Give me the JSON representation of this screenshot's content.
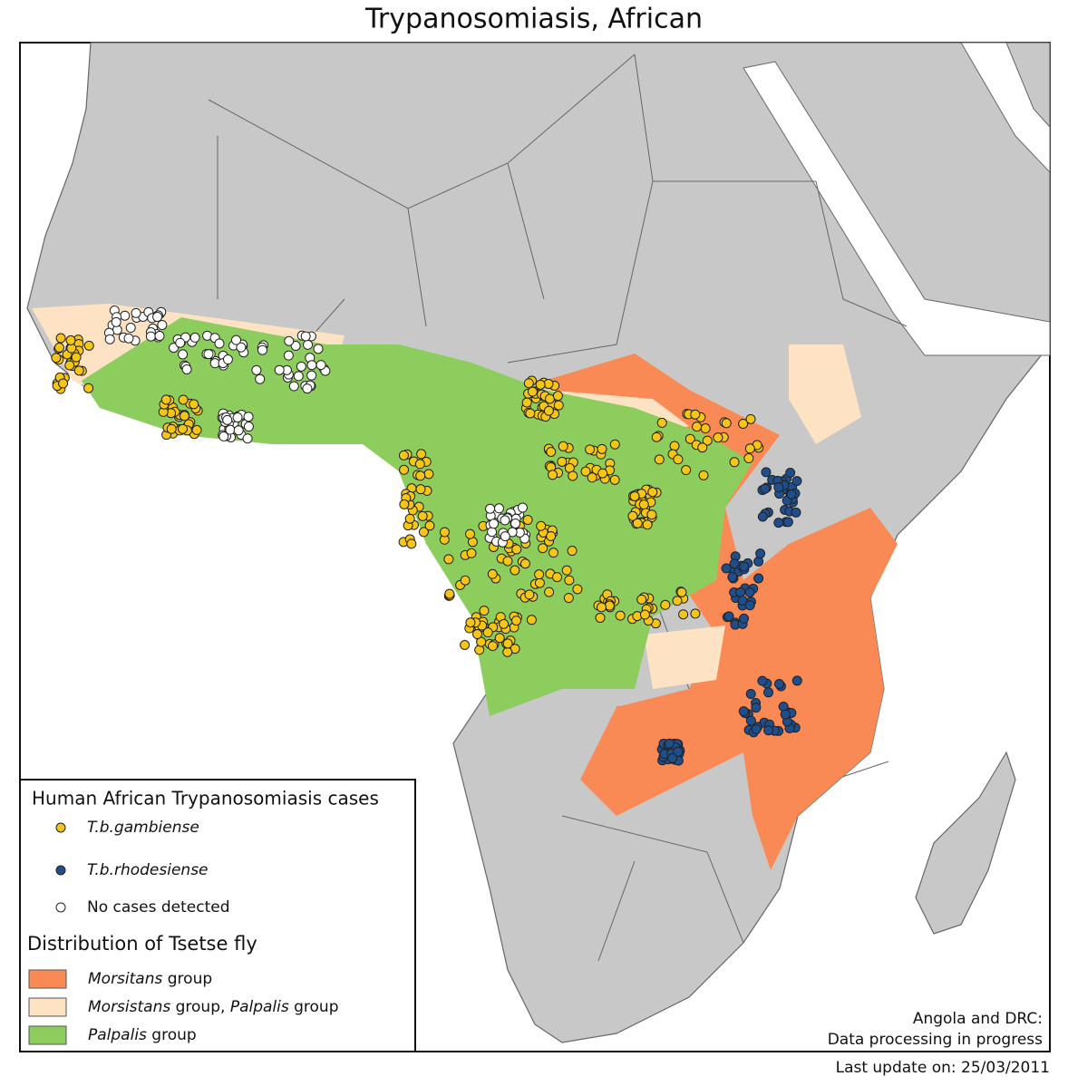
{
  "title": "Trypanosomiasis, African",
  "legend": {
    "cases": {
      "title": "Human African Trypanosomiasis cases",
      "items": [
        {
          "label": "T.b.gambiense",
          "color": "#f5c518"
        },
        {
          "label": "T.b.rhodesiense",
          "color": "#1f4e8c"
        },
        {
          "label": "No cases detected",
          "color": "#ffffff"
        }
      ]
    },
    "distribution": {
      "title": "Distribution of Tsetse fly",
      "items": [
        {
          "parts": [
            {
              "text": "Morsitans",
              "italic": true
            },
            {
              "text": " group"
            }
          ],
          "color": "#fa8a55"
        },
        {
          "parts": [
            {
              "text": "Morsistans",
              "italic": true
            },
            {
              "text": " group, "
            },
            {
              "text": "Palpalis",
              "italic": true
            },
            {
              "text": " group"
            }
          ],
          "color": "#fde3c4"
        },
        {
          "parts": [
            {
              "text": "Palpalis",
              "italic": true
            },
            {
              "text": " group"
            }
          ],
          "color": "#8dcd5e"
        }
      ]
    }
  },
  "note": [
    "Angola and DRC:",
    "Data processing in progress"
  ],
  "footer": "Last update on: 25/03/2011"
}
